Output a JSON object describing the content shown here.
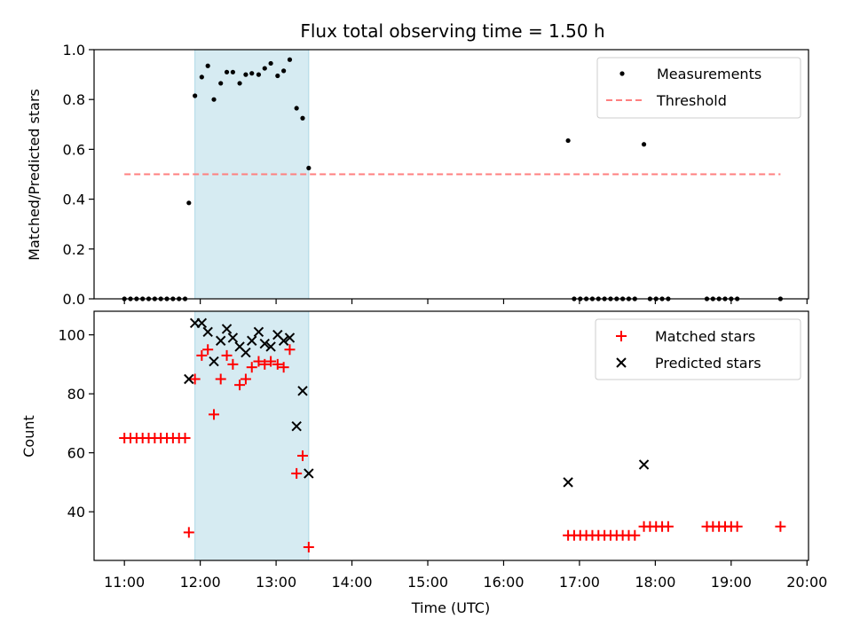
{
  "chart_data": [
    {
      "type": "scatter",
      "title": "Flux total observing time = 1.50 h",
      "xlabel": "",
      "ylabel": "Matched/Predicted stars",
      "ylim": [
        0,
        1.0
      ],
      "yticks": [
        "0.0",
        "0.2",
        "0.4",
        "0.6",
        "0.8",
        "1.0"
      ],
      "legend": {
        "placement": "top-right",
        "entries": [
          "Measurements",
          "Threshold"
        ]
      },
      "highlight_span": {
        "x0": 11.93,
        "x1": 13.43,
        "color": "#add8e6"
      },
      "threshold": {
        "name": "Threshold",
        "value": 0.5,
        "x0": 11.0,
        "x1": 19.65,
        "color": "#ff7f7f"
      },
      "series": [
        {
          "name": "Measurements",
          "color": "#000000",
          "x": [
            11.0,
            11.08,
            11.16,
            11.24,
            11.32,
            11.4,
            11.48,
            11.56,
            11.64,
            11.72,
            11.8,
            11.85,
            11.93,
            12.02,
            12.1,
            12.18,
            12.27,
            12.35,
            12.43,
            12.52,
            12.6,
            12.68,
            12.77,
            12.85,
            12.93,
            13.02,
            13.1,
            13.18,
            13.27,
            13.35,
            13.43,
            16.85,
            16.93,
            17.01,
            17.09,
            17.17,
            17.25,
            17.33,
            17.41,
            17.49,
            17.57,
            17.65,
            17.73,
            17.85,
            17.93,
            18.01,
            18.09,
            18.17,
            18.68,
            18.76,
            18.84,
            18.92,
            19.0,
            19.08,
            19.65
          ],
          "y": [
            0,
            0,
            0,
            0,
            0,
            0,
            0,
            0,
            0,
            0,
            0,
            0.385,
            0.815,
            0.89,
            0.935,
            0.8,
            0.865,
            0.91,
            0.91,
            0.865,
            0.9,
            0.905,
            0.9,
            0.925,
            0.945,
            0.895,
            0.915,
            0.96,
            0.765,
            0.725,
            0.525,
            0.635,
            0,
            0,
            0,
            0,
            0,
            0,
            0,
            0,
            0,
            0,
            0,
            0.62,
            0,
            0,
            0,
            0,
            0,
            0,
            0,
            0,
            0,
            0,
            0
          ]
        }
      ]
    },
    {
      "type": "scatter",
      "title": "",
      "xlabel": "Time (UTC)",
      "ylabel": "Count",
      "ylim": [
        23.5,
        108
      ],
      "yticks": [
        "40",
        "60",
        "80",
        "100"
      ],
      "xticks": [
        "11:00",
        "12:00",
        "13:00",
        "14:00",
        "15:00",
        "16:00",
        "17:00",
        "18:00",
        "19:00",
        "20:00"
      ],
      "legend": {
        "placement": "top-right",
        "entries": [
          "Matched stars",
          "Predicted stars"
        ]
      },
      "highlight_span": {
        "x0": 11.93,
        "x1": 13.43,
        "color": "#add8e6"
      },
      "series": [
        {
          "name": "Matched stars",
          "marker": "plus",
          "color": "#ff0000",
          "x": [
            11.0,
            11.08,
            11.16,
            11.24,
            11.32,
            11.4,
            11.48,
            11.56,
            11.64,
            11.72,
            11.8,
            11.85,
            11.93,
            12.02,
            12.1,
            12.18,
            12.27,
            12.35,
            12.43,
            12.52,
            12.6,
            12.68,
            12.77,
            12.85,
            12.93,
            13.02,
            13.1,
            13.18,
            13.27,
            13.35,
            13.43,
            16.85,
            16.93,
            17.01,
            17.09,
            17.17,
            17.25,
            17.33,
            17.41,
            17.49,
            17.57,
            17.65,
            17.73,
            17.85,
            17.93,
            18.01,
            18.09,
            18.17,
            18.68,
            18.76,
            18.84,
            18.92,
            19.0,
            19.08,
            19.65
          ],
          "y": [
            65,
            65,
            65,
            65,
            65,
            65,
            65,
            65,
            65,
            65,
            65,
            33,
            85,
            93,
            95,
            73,
            85,
            93,
            90,
            83,
            85,
            89,
            91,
            90,
            91,
            90,
            89,
            95,
            53,
            59,
            28,
            32,
            32,
            32,
            32,
            32,
            32,
            32,
            32,
            32,
            32,
            32,
            32,
            35,
            35,
            35,
            35,
            35,
            35,
            35,
            35,
            35,
            35,
            35,
            35
          ]
        },
        {
          "name": "Predicted stars",
          "marker": "x",
          "color": "#000000",
          "x": [
            11.85,
            11.93,
            12.02,
            12.1,
            12.18,
            12.27,
            12.35,
            12.43,
            12.52,
            12.6,
            12.68,
            12.77,
            12.85,
            12.93,
            13.02,
            13.1,
            13.18,
            13.27,
            13.35,
            13.43,
            16.85,
            17.85
          ],
          "y": [
            85,
            104,
            104,
            101,
            91,
            98,
            102,
            99,
            96,
            94,
            98,
            101,
            97,
            96,
            100,
            98,
            99,
            69,
            81,
            53,
            50,
            56
          ]
        }
      ]
    }
  ]
}
